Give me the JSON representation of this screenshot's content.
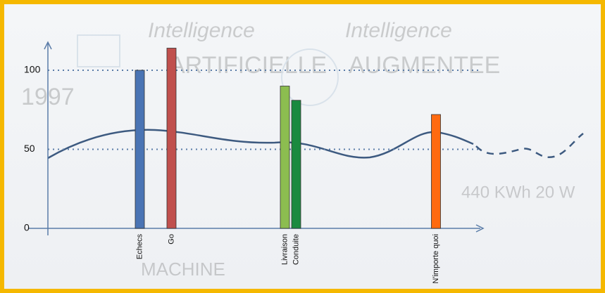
{
  "chart_data": {
    "type": "bar",
    "categories": [
      "Echecs",
      "Go",
      "Livraison",
      "Conduite",
      "N'importe quoi"
    ],
    "values": [
      100,
      114,
      90,
      81,
      72
    ],
    "colors": [
      "#4a74b4",
      "#c0504d",
      "#8cbd50",
      "#1a8a3f",
      "#ff6a10"
    ],
    "ylim": [
      0,
      120
    ],
    "yticks": [
      0,
      50,
      100
    ],
    "grid": true
  }
}
